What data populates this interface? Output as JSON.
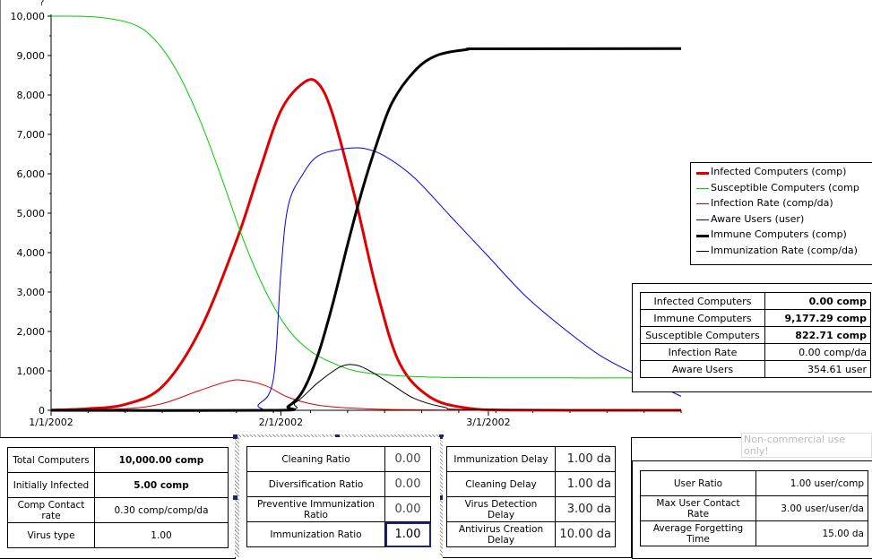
{
  "chart_data": {
    "type": "line",
    "y_axis_label": "?",
    "ylim": [
      0,
      10000
    ],
    "y_ticks": [
      "0",
      "1,000",
      "2,000",
      "3,000",
      "4,000",
      "5,000",
      "6,000",
      "7,000",
      "8,000",
      "9,000",
      "10,000"
    ],
    "x_start": "1/1/2002",
    "x_end": "3/27/2002",
    "x_ticks": [
      "1/1/2002",
      "2/1/2002",
      "3/1/2002"
    ],
    "grid": false,
    "series": [
      {
        "name": "Infected Computers (comp)",
        "color": "#e00000",
        "width": 3,
        "x": [
          "1/1/2002",
          "1/6/2002",
          "1/11/2002",
          "1/16/2002",
          "1/21/2002",
          "1/26/2002",
          "1/29/2002",
          "2/1/2002",
          "2/4/2002",
          "2/6/2002",
          "2/8/2002",
          "2/11/2002",
          "2/14/2002",
          "2/17/2002",
          "2/21/2002",
          "2/26/2002",
          "3/5/2002",
          "3/27/2002"
        ],
        "y": [
          5,
          40,
          150,
          600,
          2000,
          4300,
          6000,
          7600,
          8300,
          8300,
          7500,
          5400,
          3000,
          1200,
          350,
          60,
          5,
          0
        ]
      },
      {
        "name": "Susceptible Computers (comp",
        "color": "#00cc00",
        "width": 1,
        "x": [
          "1/1/2002",
          "1/7/2002",
          "1/12/2002",
          "1/15/2002",
          "1/18/2002",
          "1/21/2002",
          "1/24/2002",
          "1/27/2002",
          "1/30/2002",
          "2/2/2002",
          "2/5/2002",
          "2/8/2002",
          "2/11/2002",
          "2/15/2002",
          "2/20/2002",
          "3/1/2002",
          "3/27/2002"
        ],
        "y": [
          10000,
          9980,
          9800,
          9400,
          8600,
          7400,
          5900,
          4300,
          3000,
          2050,
          1500,
          1200,
          1000,
          900,
          850,
          825,
          823
        ]
      },
      {
        "name": "Infection Rate (comp/da)",
        "color": "#e00000",
        "width": 1,
        "x": [
          "1/1/2002",
          "1/11/2002",
          "1/16/2002",
          "1/21/2002",
          "1/25/2002",
          "1/27/2002",
          "1/30/2002",
          "2/2/2002",
          "2/6/2002",
          "2/11/2002",
          "2/16/2002",
          "2/26/2002",
          "3/27/2002"
        ],
        "y": [
          0,
          40,
          170,
          500,
          740,
          760,
          620,
          330,
          130,
          50,
          20,
          5,
          0
        ]
      },
      {
        "name": "Aware Users (user)",
        "color": "#0000ee",
        "width": 1,
        "x": [
          "1/1/2002",
          "1/27/2002",
          "1/29/2002",
          "1/31/2002",
          "2/1/2002",
          "2/2/2002",
          "2/4/2002",
          "2/6/2002",
          "2/9/2002",
          "2/12/2002",
          "2/15/2002",
          "2/19/2002",
          "2/24/2002",
          "3/1/2002",
          "3/6/2002",
          "3/11/2002",
          "3/16/2002",
          "3/21/2002",
          "3/27/2002"
        ],
        "y": [
          0,
          0,
          150,
          800,
          3500,
          5200,
          6000,
          6450,
          6620,
          6650,
          6450,
          5900,
          4900,
          3900,
          2900,
          2100,
          1400,
          900,
          355
        ]
      },
      {
        "name": "Immune Computers (comp)",
        "color": "#000000",
        "width": 3,
        "x": [
          "1/1/2002",
          "1/31/2002",
          "2/2/2002",
          "2/4/2002",
          "2/6/2002",
          "2/8/2002",
          "2/10/2002",
          "2/12/2002",
          "2/14/2002",
          "2/16/2002",
          "2/19/2002",
          "2/22/2002",
          "2/26/2002",
          "3/1/2002",
          "3/27/2002"
        ],
        "y": [
          0,
          0,
          100,
          500,
          1400,
          2700,
          4200,
          5600,
          6800,
          7800,
          8600,
          9000,
          9150,
          9170,
          9177
        ]
      },
      {
        "name": "Immunization Rate (comp/da)",
        "color": "#000000",
        "width": 1,
        "x": [
          "1/1/2002",
          "1/31/2002",
          "2/3/2002",
          "2/6/2002",
          "2/9/2002",
          "2/11/2002",
          "2/13/2002",
          "2/16/2002",
          "2/19/2002",
          "2/23/2002",
          "2/27/2002",
          "3/27/2002"
        ],
        "y": [
          0,
          0,
          200,
          700,
          1100,
          1150,
          1000,
          650,
          300,
          80,
          15,
          0
        ]
      }
    ]
  },
  "readout": [
    {
      "label": "Infected Computers",
      "value": "0.00 comp",
      "bold": true
    },
    {
      "label": "Immune Computers",
      "value": "9,177.29 comp",
      "bold": true
    },
    {
      "label": "Susceptible Computers",
      "value": "822.71 comp",
      "bold": true
    },
    {
      "label": "Infection Rate",
      "value": "0.00 comp/da",
      "bold": false
    },
    {
      "label": "Aware Users",
      "value": "354.61 user",
      "bold": false
    }
  ],
  "watermark": "Non-commercial use only!",
  "inputs_left": [
    {
      "label": "Total Computers",
      "value": "10,000.00 comp",
      "bold": true
    },
    {
      "label": "Initially Infected",
      "value": "5.00 comp",
      "bold": true
    },
    {
      "label": "Comp Contact rate",
      "value": "0.30 comp/comp/da",
      "bold": false
    },
    {
      "label": "Virus type",
      "value": "1.00",
      "bold": false
    }
  ],
  "inputs_ratios": [
    {
      "label": "Cleaning Ratio",
      "value": "0.00",
      "focused": false
    },
    {
      "label": "Diversification Ratio",
      "value": "0.00",
      "focused": false
    },
    {
      "label": "Preventive Immunization Ratio",
      "value": "0.00",
      "focused": false
    },
    {
      "label": "Immunization Ratio",
      "value": "1.00",
      "focused": true
    }
  ],
  "inputs_delays": [
    {
      "label": "Immunization Delay",
      "value": "1.00 da"
    },
    {
      "label": "Cleaning Delay",
      "value": "1.00 da"
    },
    {
      "label": "Virus Detection Delay",
      "value": "3.00 da"
    },
    {
      "label": "Antivirus Creation Delay",
      "value": "10.00 da"
    }
  ],
  "inputs_users": [
    {
      "label": "User Ratio",
      "value": "1.00 user/comp"
    },
    {
      "label": "Max User Contact Rate",
      "value": "3.00 user/user/da"
    },
    {
      "label": "Average Forgetting Time",
      "value": "15.00 da"
    }
  ]
}
